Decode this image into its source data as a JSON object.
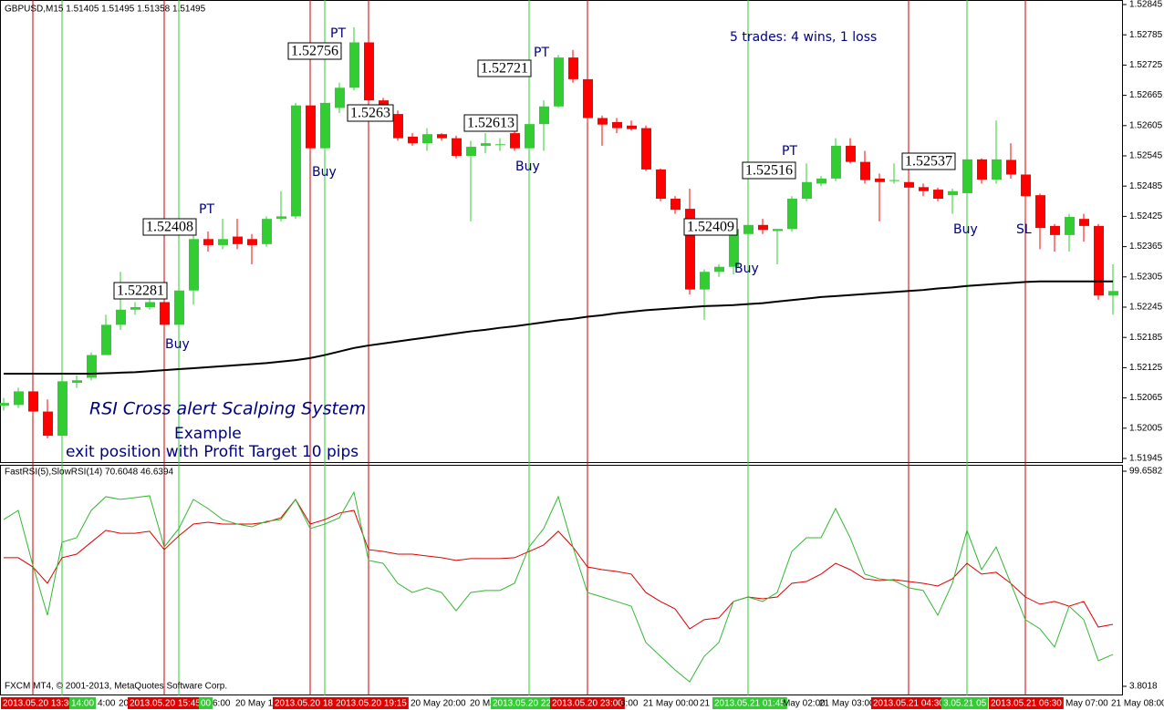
{
  "chart_data": [
    {
      "type": "candlestick",
      "title": "GBPUSD,M15  1.51405 1.51495 1.51358 1.51495",
      "up_color": "#32cd32",
      "down_color": "#ff0000",
      "open": [
        1.5205,
        1.52051,
        1.52078,
        1.52038,
        1.5199,
        1.52095,
        1.52105,
        1.5215,
        1.5221,
        1.5224,
        1.52245,
        1.52255,
        1.5221,
        1.52278,
        1.5238,
        1.52368,
        1.52385,
        1.5238,
        1.5237,
        1.5242,
        1.52425,
        1.52645,
        1.5256,
        1.5264,
        1.5268,
        1.5277,
        1.52655,
        1.52628,
        1.52583,
        1.5257,
        1.52588,
        1.5258,
        1.52545,
        1.52565,
        1.52568,
        1.5259,
        1.5256,
        1.52608,
        1.52643,
        1.5274,
        1.52697,
        1.5262,
        1.52612,
        1.52605,
        1.526,
        1.52518,
        1.5246,
        1.5244,
        1.5228,
        1.52315,
        1.52325,
        1.5239,
        1.52408,
        1.52396,
        1.524,
        1.5246,
        1.5249,
        1.525,
        1.52565,
        1.52533,
        1.525,
        1.52497,
        1.52493,
        1.52483,
        1.52478,
        1.52467,
        1.52471,
        1.52538,
        1.52498,
        1.52537,
        1.52508,
        1.52467,
        1.52406,
        1.52388,
        1.5242,
        1.52406,
        1.52268
      ],
      "high": [
        1.52065,
        1.52085,
        1.5208,
        1.52062,
        1.521,
        1.5211,
        1.52155,
        1.5223,
        1.52315,
        1.52255,
        1.52265,
        1.5226,
        1.52285,
        1.52395,
        1.52395,
        1.5242,
        1.5242,
        1.5239,
        1.52425,
        1.52475,
        1.5265,
        1.5265,
        1.5266,
        1.5269,
        1.528,
        1.52775,
        1.5266,
        1.52635,
        1.5259,
        1.526,
        1.5259,
        1.52585,
        1.52575,
        1.5259,
        1.5258,
        1.526,
        1.5262,
        1.52655,
        1.52745,
        1.52755,
        1.527,
        1.52625,
        1.5262,
        1.52615,
        1.52605,
        1.5252,
        1.52465,
        1.5248,
        1.5232,
        1.5233,
        1.5242,
        1.52415,
        1.5242,
        1.524,
        1.52465,
        1.5253,
        1.52505,
        1.5258,
        1.5258,
        1.52555,
        1.5251,
        1.5253,
        1.52525,
        1.5249,
        1.52482,
        1.5248,
        1.52545,
        1.5254,
        1.52615,
        1.5257,
        1.5251,
        1.5247,
        1.5241,
        1.5243,
        1.5243,
        1.5241,
        1.5233
      ],
      "low": [
        1.5204,
        1.52045,
        1.5203,
        1.51985,
        1.51985,
        1.52085,
        1.521,
        1.5215,
        1.522,
        1.5223,
        1.5224,
        1.52205,
        1.52205,
        1.5225,
        1.52355,
        1.5236,
        1.5236,
        1.5233,
        1.52365,
        1.52415,
        1.5242,
        1.52555,
        1.52555,
        1.5263,
        1.52675,
        1.5264,
        1.5262,
        1.52575,
        1.52565,
        1.52555,
        1.52575,
        1.5254,
        1.52415,
        1.5255,
        1.52555,
        1.52555,
        1.52545,
        1.52555,
        1.5264,
        1.5269,
        1.5261,
        1.52565,
        1.5259,
        1.52595,
        1.52515,
        1.52455,
        1.5243,
        1.5227,
        1.5222,
        1.52305,
        1.5231,
        1.52385,
        1.5239,
        1.5233,
        1.52395,
        1.52455,
        1.52485,
        1.52495,
        1.5253,
        1.5249,
        1.52415,
        1.5249,
        1.52478,
        1.52465,
        1.52455,
        1.5243,
        1.5246,
        1.5249,
        1.5249,
        1.525,
        1.5242,
        1.5236,
        1.52355,
        1.52355,
        1.52375,
        1.5226,
        1.5223
      ],
      "close": [
        1.52055,
        1.52078,
        1.52038,
        1.5199,
        1.52098,
        1.521,
        1.5215,
        1.5221,
        1.5224,
        1.52245,
        1.52255,
        1.5221,
        1.52278,
        1.5238,
        1.52368,
        1.5238,
        1.5237,
        1.52368,
        1.5242,
        1.52425,
        1.52645,
        1.5256,
        1.5265,
        1.5268,
        1.5277,
        1.52655,
        1.52628,
        1.5258,
        1.5257,
        1.52588,
        1.5258,
        1.52545,
        1.52563,
        1.5257,
        1.52568,
        1.5256,
        1.52608,
        1.52643,
        1.5274,
        1.52697,
        1.5262,
        1.52607,
        1.526,
        1.52598,
        1.52518,
        1.5246,
        1.52438,
        1.5228,
        1.52315,
        1.52325,
        1.524,
        1.52408,
        1.52398,
        1.524,
        1.5246,
        1.52493,
        1.525,
        1.52565,
        1.52533,
        1.52497,
        1.52493,
        1.52497,
        1.52482,
        1.52475,
        1.5246,
        1.52475,
        1.52538,
        1.52498,
        1.52538,
        1.52508,
        1.52465,
        1.52402,
        1.52388,
        1.52424,
        1.52406,
        1.52268,
        1.52277
      ],
      "ma": {
        "color": "#000000",
        "values": [
          1.52113,
          1.52113,
          1.52113,
          1.52113,
          1.52113,
          1.52113,
          1.52113,
          1.52114,
          1.52115,
          1.52116,
          1.52118,
          1.5212,
          1.52122,
          1.52124,
          1.52126,
          1.52128,
          1.5213,
          1.52132,
          1.52134,
          1.52137,
          1.5214,
          1.52144,
          1.5215,
          1.52157,
          1.52164,
          1.52169,
          1.52173,
          1.52177,
          1.52181,
          1.52185,
          1.52189,
          1.52193,
          1.52197,
          1.522,
          1.52204,
          1.52207,
          1.52211,
          1.52215,
          1.52219,
          1.52222,
          1.52226,
          1.52229,
          1.52233,
          1.52236,
          1.52239,
          1.52241,
          1.52243,
          1.52245,
          1.52247,
          1.52248,
          1.52249,
          1.52251,
          1.52253,
          1.52256,
          1.52259,
          1.52262,
          1.52265,
          1.52267,
          1.52269,
          1.52271,
          1.52273,
          1.52275,
          1.52277,
          1.52279,
          1.52282,
          1.52284,
          1.52287,
          1.52289,
          1.52291,
          1.52293,
          1.52295,
          1.52296,
          1.52296,
          1.52296,
          1.52296,
          1.52296,
          1.52296
        ]
      },
      "ylim": [
        1.51945,
        1.52845
      ],
      "yticks": [
        1.51945,
        1.52005,
        1.52065,
        1.52125,
        1.52185,
        1.52245,
        1.52305,
        1.52365,
        1.52425,
        1.52485,
        1.52545,
        1.52605,
        1.52665,
        1.52725,
        1.52785,
        1.52845
      ],
      "price_labels": [
        1.52281,
        1.52408,
        1.52756,
        1.5263,
        1.52613,
        1.52721,
        1.52409,
        1.52516,
        1.52537
      ],
      "annotations": [
        "PT",
        "PT",
        "PT",
        "PT",
        "Buy",
        "Buy",
        "Buy",
        "Buy",
        "Buy",
        "SL"
      ],
      "notes": [
        "5 trades: 4 wins, 1 loss",
        "RSI Cross alert  Scalping System",
        "Example",
        "exit position  with Profit Target 10 pips"
      ]
    },
    {
      "type": "line",
      "title": "FastRSI(5),SlowRSI(14) 70.6048 46.6394",
      "series": [
        {
          "name": "SlowRSI(14)",
          "color": "#dd0000",
          "values": [
            61.1,
            61.1,
            57.0,
            49.7,
            61.1,
            62.7,
            68.0,
            73.3,
            72.0,
            72.0,
            72.9,
            64.7,
            70.8,
            76.1,
            76.9,
            76.1,
            76.1,
            76.1,
            76.9,
            78.9,
            87.1,
            76.1,
            78.1,
            81.0,
            82.2,
            64.7,
            63.9,
            62.7,
            62.7,
            61.9,
            61.1,
            59.9,
            60.7,
            60.7,
            60.7,
            61.1,
            63.9,
            66.8,
            72.9,
            65.9,
            57.0,
            55.8,
            55.0,
            53.8,
            45.6,
            41.6,
            38.3,
            29.4,
            33.5,
            34.3,
            41.6,
            43.6,
            42.8,
            43.6,
            49.7,
            50.5,
            53.8,
            58.6,
            55.8,
            51.7,
            50.9,
            51.3,
            50.5,
            49.7,
            48.5,
            51.7,
            58.6,
            53.8,
            54.6,
            49.7,
            43.6,
            40.4,
            41.6,
            39.5,
            41.6,
            30.2,
            31.4
          ]
        },
        {
          "name": "FastRSI(5)",
          "color": "#32b832",
          "values": [
            78.1,
            82.2,
            57.8,
            35.5,
            68.0,
            70.0,
            82.2,
            88.3,
            87.1,
            87.9,
            88.7,
            65.9,
            74.1,
            87.1,
            83.0,
            78.1,
            76.1,
            74.9,
            77.3,
            78.1,
            87.1,
            74.1,
            76.1,
            78.9,
            90.3,
            59.9,
            58.6,
            49.7,
            45.6,
            47.7,
            45.6,
            37.5,
            45.6,
            46.5,
            46.5,
            49.7,
            65.9,
            74.1,
            88.3,
            65.9,
            45.6,
            43.6,
            41.6,
            39.5,
            23.3,
            17.2,
            11.1,
            5.8,
            17.2,
            23.3,
            41.6,
            43.6,
            41.6,
            45.6,
            63.9,
            70.0,
            70.0,
            83.0,
            70.0,
            53.8,
            51.7,
            50.9,
            47.7,
            46.5,
            35.5,
            49.7,
            73.3,
            55.8,
            65.9,
            49.7,
            33.5,
            29.4,
            21.3,
            39.5,
            33.5,
            15.2,
            18.0
          ]
        }
      ],
      "ylim": [
        3.8018,
        99.6582
      ],
      "yticks": [
        3.8018,
        99.6582
      ]
    }
  ],
  "footer": "FXCM MT4, © 2001-2013, MetaQuotes Software Corp.",
  "time_axis": [
    {
      "text": "2013.05.20 13:30",
      "highlight": "#e00000"
    },
    {
      "text": "14:00",
      "highlight": "#32cd32"
    },
    {
      "text": "4:00"
    },
    {
      "text": "20"
    },
    {
      "text": "2013.05.20 15:45",
      "highlight": "#e00000"
    },
    {
      "text": "00",
      "highlight": "#32cd32"
    },
    {
      "text": "6:00"
    },
    {
      "text": "20 May 1"
    },
    {
      "text": "2013.05.20 18",
      "highlight": "#e00000"
    },
    {
      "text": "2013.05.20 19:15",
      "highlight": "#e00000"
    },
    {
      "text": "20 May 20:00"
    },
    {
      "text": "20 Ma"
    },
    {
      "text": "2013.05.20 22",
      "highlight": "#32cd32"
    },
    {
      "text": "2013.05.20 23:00",
      "highlight": "#e00000"
    },
    {
      "text": "3:00"
    },
    {
      "text": "21 May 00:00"
    },
    {
      "text": "21"
    },
    {
      "text": "2013.05.21 01:45",
      "highlight": "#32cd32"
    },
    {
      "text": "May 02:00"
    },
    {
      "text": "21 May 03:00"
    },
    {
      "text": "2013.05.21 04:30",
      "highlight": "#e00000"
    },
    {
      "text": "3.05.21 05",
      "highlight": "#32cd32"
    },
    {
      "text": "2013.05.21 06:30",
      "highlight": "#e00000"
    },
    {
      "text": "May 07:00"
    },
    {
      "text": "21 May 08:00"
    }
  ]
}
